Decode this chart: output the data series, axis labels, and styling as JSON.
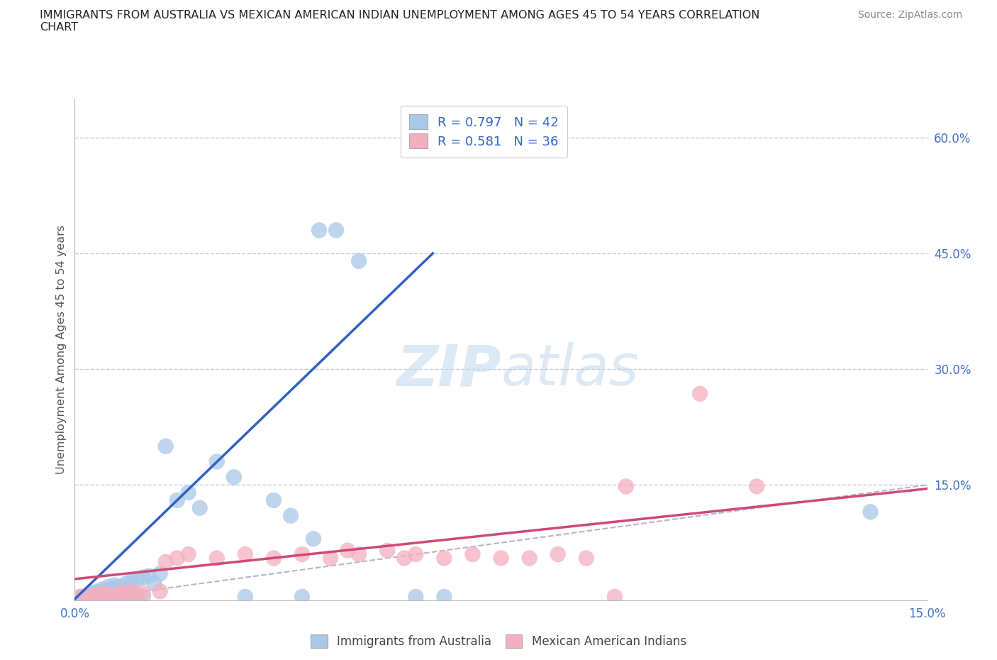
{
  "title_line1": "IMMIGRANTS FROM AUSTRALIA VS MEXICAN AMERICAN INDIAN UNEMPLOYMENT AMONG AGES 45 TO 54 YEARS CORRELATION",
  "title_line2": "CHART",
  "source": "Source: ZipAtlas.com",
  "ylabel": "Unemployment Among Ages 45 to 54 years",
  "xlim": [
    0.0,
    0.15
  ],
  "ylim": [
    0.0,
    0.65
  ],
  "xtick_vals": [
    0.0,
    0.05,
    0.1,
    0.15
  ],
  "xticklabels": [
    "0.0%",
    "",
    "",
    "15.0%"
  ],
  "ytick_right_labels": [
    "60.0%",
    "45.0%",
    "30.0%",
    "15.0%"
  ],
  "ytick_right_vals": [
    0.6,
    0.45,
    0.3,
    0.15
  ],
  "watermark": "ZIPatlas",
  "legend_r1": "R = 0.797   N = 42",
  "legend_r2": "R = 0.581   N = 36",
  "legend_label1": "Immigrants from Australia",
  "legend_label2": "Mexican American Indians",
  "color_blue": "#a8c8e8",
  "color_pink": "#f4afc0",
  "line_blue": "#3060c0",
  "line_pink": "#d04878",
  "diag_color": "#b0b8c8",
  "background": "#ffffff",
  "blue_scatter": [
    [
      0.001,
      0.003
    ],
    [
      0.001,
      0.005
    ],
    [
      0.002,
      0.004
    ],
    [
      0.002,
      0.006
    ],
    [
      0.003,
      0.007
    ],
    [
      0.003,
      0.01
    ],
    [
      0.004,
      0.008
    ],
    [
      0.004,
      0.012
    ],
    [
      0.005,
      0.01
    ],
    [
      0.005,
      0.015
    ],
    [
      0.006,
      0.012
    ],
    [
      0.006,
      0.018
    ],
    [
      0.007,
      0.015
    ],
    [
      0.007,
      0.02
    ],
    [
      0.008,
      0.005
    ],
    [
      0.008,
      0.018
    ],
    [
      0.009,
      0.022
    ],
    [
      0.01,
      0.008
    ],
    [
      0.01,
      0.025
    ],
    [
      0.011,
      0.028
    ],
    [
      0.012,
      0.005
    ],
    [
      0.012,
      0.03
    ],
    [
      0.013,
      0.032
    ],
    [
      0.014,
      0.022
    ],
    [
      0.015,
      0.035
    ],
    [
      0.016,
      0.2
    ],
    [
      0.018,
      0.13
    ],
    [
      0.02,
      0.14
    ],
    [
      0.022,
      0.12
    ],
    [
      0.025,
      0.18
    ],
    [
      0.028,
      0.16
    ],
    [
      0.03,
      0.005
    ],
    [
      0.035,
      0.13
    ],
    [
      0.038,
      0.11
    ],
    [
      0.04,
      0.005
    ],
    [
      0.042,
      0.08
    ],
    [
      0.043,
      0.48
    ],
    [
      0.046,
      0.48
    ],
    [
      0.05,
      0.44
    ],
    [
      0.06,
      0.005
    ],
    [
      0.065,
      0.005
    ],
    [
      0.14,
      0.115
    ]
  ],
  "pink_scatter": [
    [
      0.001,
      0.005
    ],
    [
      0.002,
      0.006
    ],
    [
      0.003,
      0.005
    ],
    [
      0.004,
      0.008
    ],
    [
      0.005,
      0.01
    ],
    [
      0.006,
      0.007
    ],
    [
      0.007,
      0.006
    ],
    [
      0.008,
      0.01
    ],
    [
      0.009,
      0.01
    ],
    [
      0.01,
      0.012
    ],
    [
      0.011,
      0.008
    ],
    [
      0.012,
      0.01
    ],
    [
      0.015,
      0.012
    ],
    [
      0.016,
      0.05
    ],
    [
      0.018,
      0.055
    ],
    [
      0.02,
      0.06
    ],
    [
      0.025,
      0.055
    ],
    [
      0.03,
      0.06
    ],
    [
      0.035,
      0.055
    ],
    [
      0.04,
      0.06
    ],
    [
      0.045,
      0.055
    ],
    [
      0.048,
      0.065
    ],
    [
      0.05,
      0.06
    ],
    [
      0.055,
      0.065
    ],
    [
      0.058,
      0.055
    ],
    [
      0.06,
      0.06
    ],
    [
      0.065,
      0.055
    ],
    [
      0.07,
      0.06
    ],
    [
      0.075,
      0.055
    ],
    [
      0.08,
      0.055
    ],
    [
      0.085,
      0.06
    ],
    [
      0.09,
      0.055
    ],
    [
      0.095,
      0.005
    ],
    [
      0.097,
      0.148
    ],
    [
      0.11,
      0.268
    ],
    [
      0.12,
      0.148
    ]
  ],
  "blue_line_x": [
    0.0,
    0.063
  ],
  "blue_line_y": [
    0.002,
    0.45
  ],
  "pink_line_x": [
    0.0,
    0.15
  ],
  "pink_line_y": [
    0.028,
    0.145
  ],
  "diag_line_x": [
    0.0,
    0.15
  ],
  "diag_line_y": [
    0.0,
    0.15
  ]
}
